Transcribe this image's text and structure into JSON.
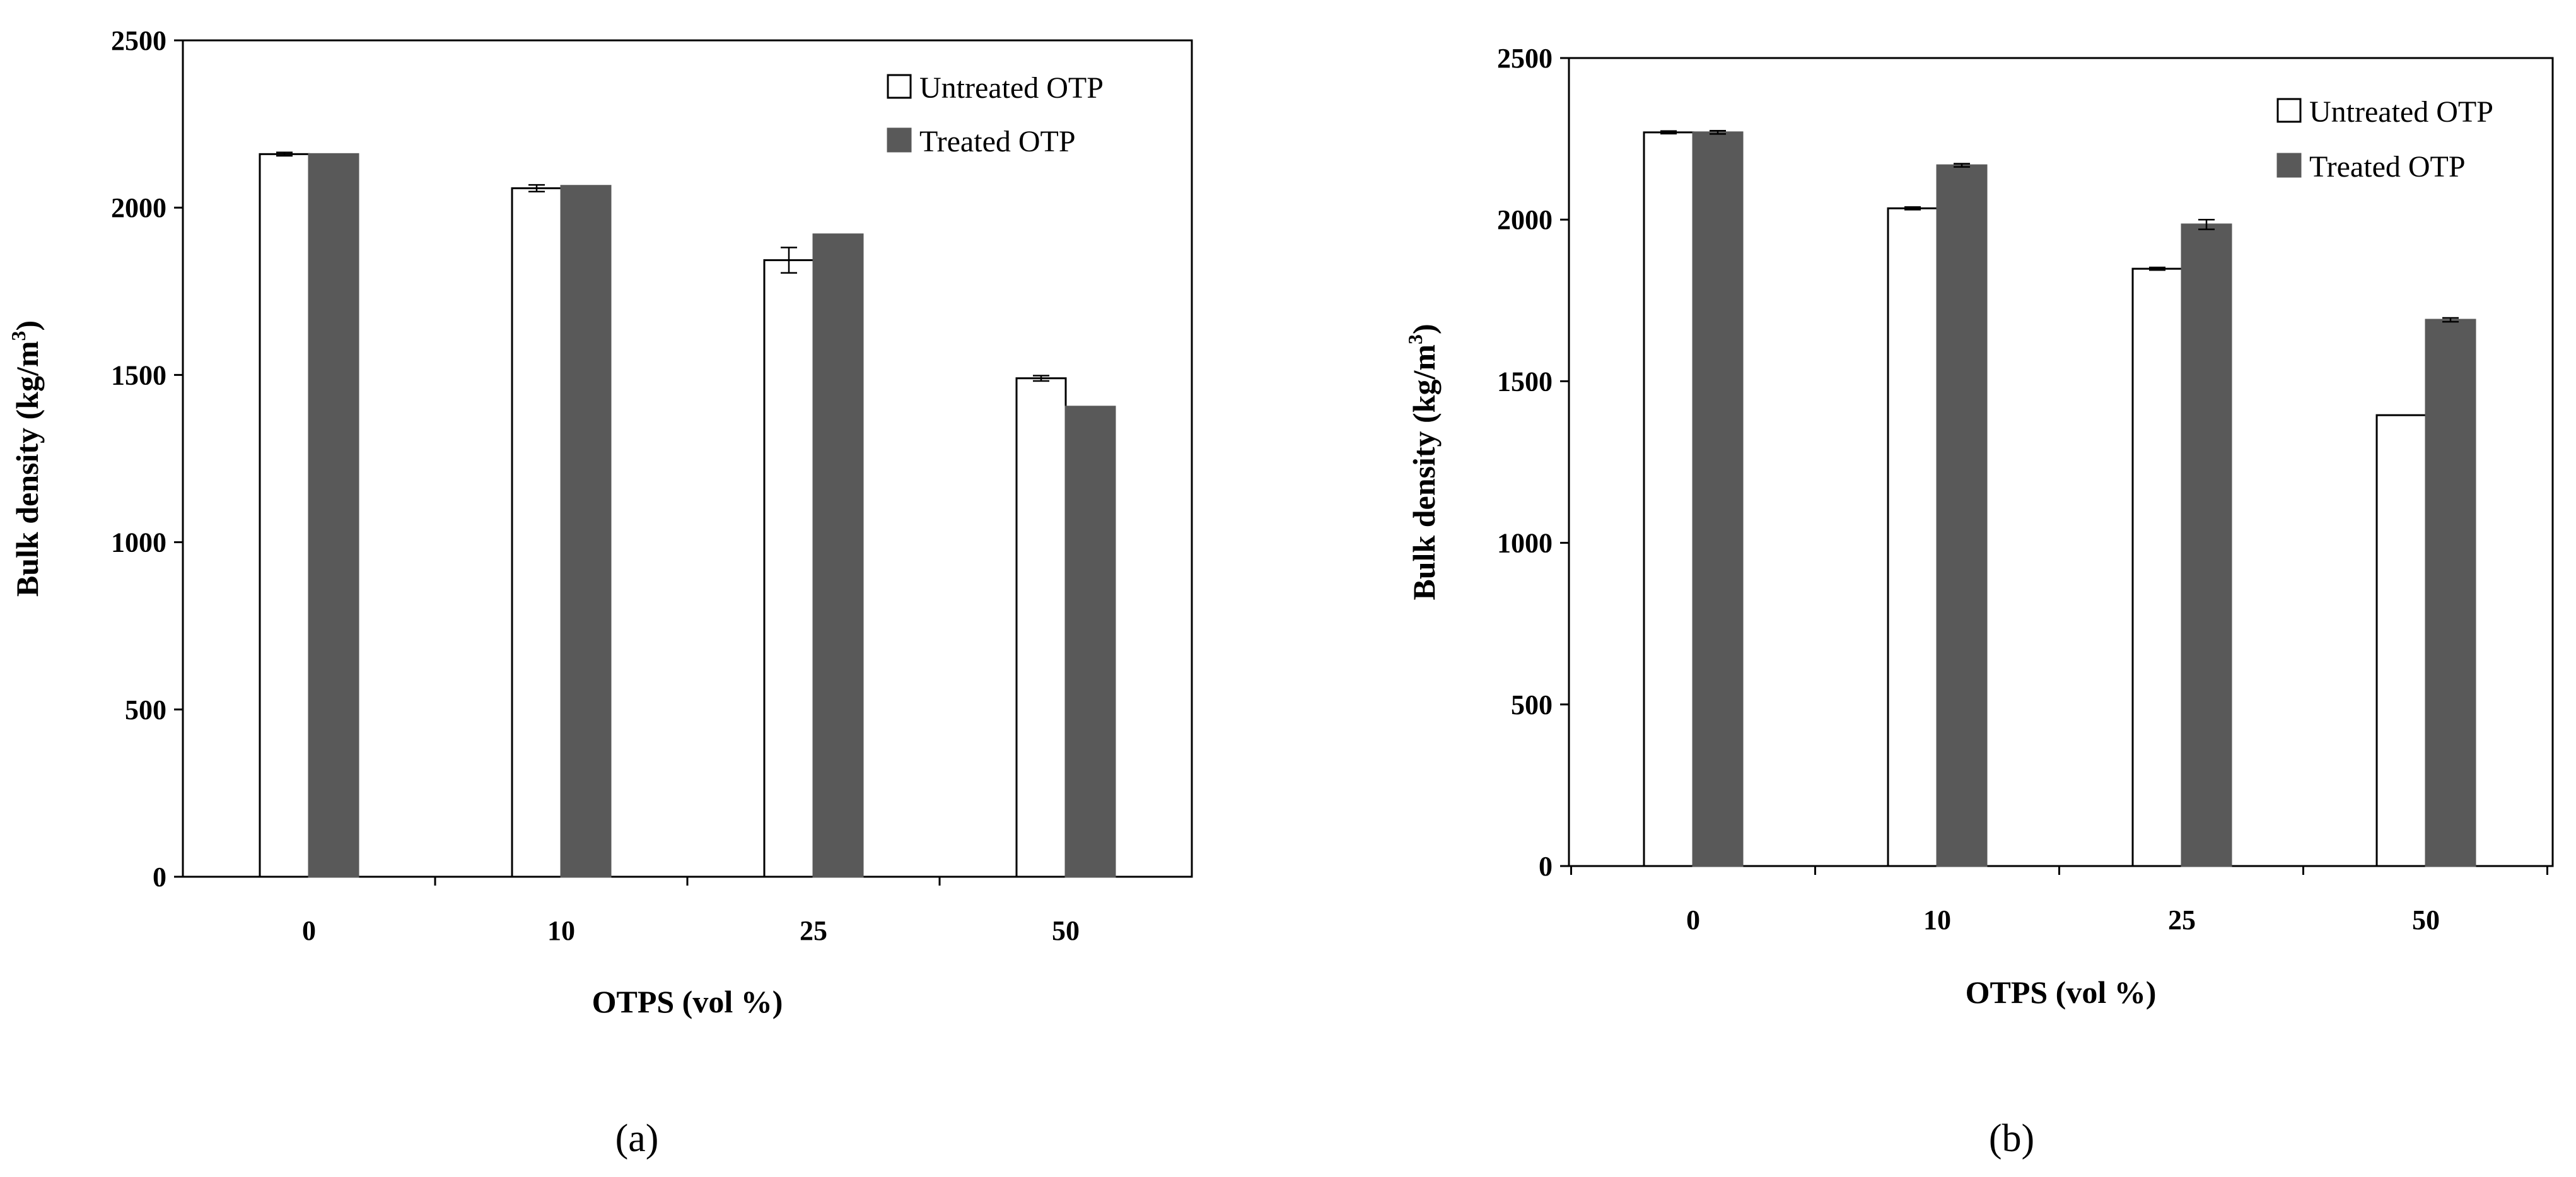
{
  "chart_data": [
    {
      "type": "bar",
      "panel_label": "(a)",
      "categories": [
        "0",
        "10",
        "25",
        "50"
      ],
      "series": [
        {
          "name": "Untreated OTP",
          "color": "#ffffff",
          "values": [
            2160,
            2058,
            1843,
            1490
          ],
          "errors": [
            5,
            10,
            38,
            8
          ]
        },
        {
          "name": "Treated OTP",
          "color": "#595959",
          "values": [
            2160,
            2065,
            1920,
            1405
          ],
          "errors": [
            0,
            0,
            0,
            0
          ]
        }
      ],
      "xlabel": "OTPS (vol %)",
      "ylabel_main": "Bulk density (kg/m",
      "ylabel_sup": "3",
      "ylabel_end": ")",
      "ylim": [
        0,
        2500
      ],
      "yticks": [
        "0",
        "500",
        "1000",
        "1500",
        "2000",
        "2500"
      ],
      "legend_position": "top-right",
      "grid": false
    },
    {
      "type": "bar",
      "panel_label": "(b)",
      "categories": [
        "0",
        "10",
        "25",
        "50"
      ],
      "series": [
        {
          "name": "Untreated OTP",
          "color": "#ffffff",
          "values": [
            2270,
            2035,
            1848,
            1395
          ],
          "errors": [
            4,
            4,
            4,
            0
          ]
        },
        {
          "name": "Treated OTP",
          "color": "#595959",
          "values": [
            2270,
            2168,
            1985,
            1690
          ],
          "errors": [
            5,
            5,
            15,
            6
          ]
        }
      ],
      "xlabel": "OTPS (vol %)",
      "ylabel_main": "Bulk density (kg/m",
      "ylabel_sup": "3",
      "ylabel_end": ")",
      "ylim": [
        0,
        2500
      ],
      "yticks": [
        "0",
        "500",
        "1000",
        "1500",
        "2000",
        "2500"
      ],
      "legend_position": "top-right",
      "grid": false
    }
  ]
}
